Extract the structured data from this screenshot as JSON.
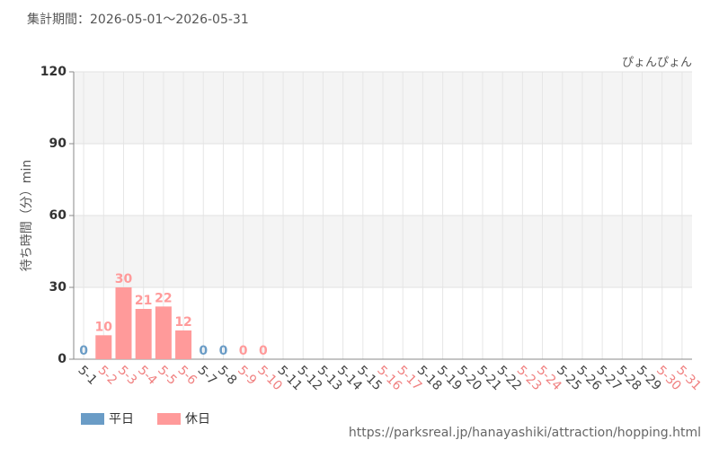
{
  "chart_data": {
    "type": "bar",
    "period": "集計期間：2026-05-01～2026-05-31",
    "title": "ぴょんぴょん",
    "ylabel": "待ち時間（分）min",
    "source": "https://parksreal.jp/hanayashiki/attraction/hopping.html",
    "categories": [
      "5-1",
      "5-2",
      "5-3",
      "5-4",
      "5-5",
      "5-6",
      "5-7",
      "5-8",
      "5-9",
      "5-10",
      "5-11",
      "5-12",
      "5-13",
      "5-14",
      "5-15",
      "5-16",
      "5-17",
      "5-18",
      "5-19",
      "5-20",
      "5-21",
      "5-22",
      "5-23",
      "5-24",
      "5-25",
      "5-26",
      "5-27",
      "5-28",
      "5-29",
      "5-30",
      "5-31"
    ],
    "category_colors": [
      "#444",
      "#f08080",
      "#f08080",
      "#f08080",
      "#f08080",
      "#f08080",
      "#444",
      "#444",
      "#f08080",
      "#f08080",
      "#444",
      "#444",
      "#444",
      "#444",
      "#444",
      "#f08080",
      "#f08080",
      "#444",
      "#444",
      "#444",
      "#444",
      "#444",
      "#f08080",
      "#f08080",
      "#444",
      "#444",
      "#444",
      "#444",
      "#444",
      "#f08080",
      "#f08080"
    ],
    "series": [
      {
        "name": "平日",
        "color": "#6a9cc6",
        "values": [
          0,
          null,
          null,
          null,
          null,
          null,
          0,
          0,
          null,
          null,
          null,
          null,
          null,
          null,
          null,
          null,
          null,
          null,
          null,
          null,
          null,
          null,
          null,
          null,
          null,
          null,
          null,
          null,
          null,
          null,
          null
        ]
      },
      {
        "name": "休日",
        "color": "#ff9a9a",
        "values": [
          null,
          10,
          30,
          21,
          22,
          12,
          null,
          null,
          0,
          0,
          null,
          null,
          null,
          null,
          null,
          null,
          null,
          null,
          null,
          null,
          null,
          null,
          null,
          null,
          null,
          null,
          null,
          null,
          null,
          null,
          null
        ]
      }
    ],
    "ylim": [
      0,
      120
    ],
    "yticks": [
      0,
      30,
      60,
      90,
      120
    ],
    "grid": true
  }
}
